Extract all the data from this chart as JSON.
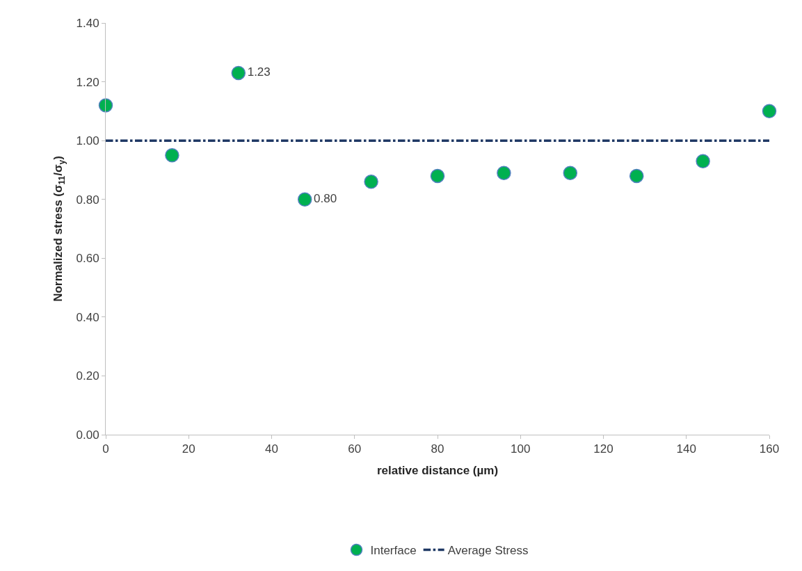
{
  "chart_data": {
    "type": "scatter",
    "xlabel": "relative distance (µm)",
    "ylabel": "Normalized stress (σ$_{11}$/σ$_{y}$)",
    "x": [
      0,
      16,
      32,
      48,
      64,
      80,
      96,
      112,
      128,
      144,
      160
    ],
    "series": [
      {
        "name": "Interface",
        "color": "#00b050",
        "marker": "circle",
        "values": [
          1.12,
          0.95,
          1.23,
          0.8,
          0.86,
          0.88,
          0.89,
          0.89,
          0.88,
          0.93,
          1.1
        ],
        "value_labels": [
          null,
          null,
          "1.23",
          "0.80",
          null,
          null,
          null,
          null,
          null,
          null,
          null
        ]
      },
      {
        "name": "Average Stress",
        "type": "line",
        "color": "#1f3864",
        "line_style": "dashed",
        "x": [
          0,
          160
        ],
        "values": [
          1.0,
          1.0
        ]
      }
    ],
    "xlim": [
      0,
      160
    ],
    "xticks": [
      0,
      20,
      40,
      60,
      80,
      100,
      120,
      140,
      160
    ],
    "ylim": [
      0,
      1.4
    ],
    "yticks": [
      {
        "value": 0,
        "label": "0.00"
      },
      {
        "value": 0.2,
        "label": "0.20"
      },
      {
        "value": 0.4,
        "label": "0.40"
      },
      {
        "value": 0.6,
        "label": "0.60"
      },
      {
        "value": 0.8,
        "label": "0.80"
      },
      {
        "value": 1.0,
        "label": "1.00"
      },
      {
        "value": 1.2,
        "label": "1.20"
      },
      {
        "value": 1.4,
        "label": "1.40"
      }
    ],
    "legend": "bottom"
  }
}
